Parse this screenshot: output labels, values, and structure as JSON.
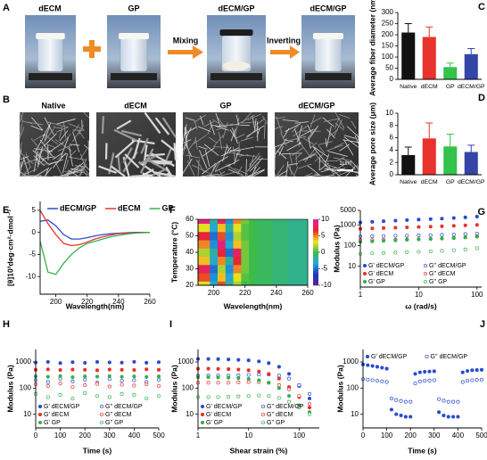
{
  "panel_a": {
    "letter": "A",
    "labels": [
      "dECM",
      "GP",
      "dECM/GP",
      "dECM/GP"
    ],
    "arrows": [
      "Mixing",
      "Inverting"
    ]
  },
  "panel_b": {
    "letter": "B",
    "labels": [
      "Native",
      "dECM",
      "GP",
      "dECM/GP"
    ],
    "scale_bar": "1μm"
  },
  "chart_data": [
    {
      "type": "bar",
      "letter": "C",
      "ylabel": "Average fiber diameter (nm)",
      "categories": [
        "Native",
        "dECM",
        "GP",
        "dECM/GP"
      ],
      "values": [
        210,
        190,
        55,
        113
      ],
      "errors": [
        40,
        45,
        18,
        25
      ],
      "colors": [
        "#111111",
        "#e8322c",
        "#33c24a",
        "#3445a8"
      ],
      "ylim": [
        0,
        300
      ],
      "yticks": [
        0,
        50,
        100,
        150,
        200,
        250,
        300
      ]
    },
    {
      "type": "bar",
      "letter": "D",
      "ylabel": "Average pore size (μm)",
      "categories": [
        "Native",
        "dECM",
        "GP",
        "dECM/GP"
      ],
      "values": [
        3.2,
        5.9,
        4.6,
        3.7
      ],
      "errors": [
        1.3,
        2.5,
        2.0,
        1.1
      ],
      "colors": [
        "#111111",
        "#e8322c",
        "#33c24a",
        "#3445a8"
      ],
      "ylim": [
        0,
        10
      ],
      "yticks": [
        0,
        2,
        4,
        6,
        8,
        10
      ]
    },
    {
      "type": "line",
      "letter": "E",
      "ylabel": "[θ]10³deg·cm²·dmol⁻¹",
      "xlabel": "Wavelength(nm)",
      "x": [
        190,
        195,
        200,
        205,
        210,
        215,
        220,
        225,
        230,
        235,
        240,
        245,
        250,
        255,
        260
      ],
      "series": [
        {
          "name": "dECM/GP",
          "color": "#2b4bd0",
          "values": [
            2.5,
            2.8,
            1.5,
            -0.5,
            -1.5,
            -1.5,
            -1.2,
            -0.8,
            -0.5,
            -0.3,
            -0.2,
            -0.1,
            0,
            0,
            0
          ]
        },
        {
          "name": "dECM",
          "color": "#e8322c",
          "values": [
            5,
            2,
            -0.5,
            -2.5,
            -3,
            -2.8,
            -2.2,
            -1.5,
            -1,
            -0.6,
            -0.3,
            -0.2,
            -0.1,
            0,
            0
          ]
        },
        {
          "name": "GP",
          "color": "#33b24a",
          "values": [
            -2,
            -9,
            -9.5,
            -7,
            -5,
            -3.5,
            -2.5,
            -2,
            -1.5,
            -1,
            -0.7,
            -0.4,
            -0.2,
            -0.1,
            0
          ]
        }
      ],
      "xlim": [
        190,
        260
      ],
      "xticks": [
        200,
        220,
        240,
        260
      ],
      "ylim": [
        -14,
        7
      ],
      "yticks": [
        -10,
        -5,
        0,
        5
      ]
    },
    {
      "type": "heatmap",
      "letter": "F",
      "ylabel": "Temperature (°C)",
      "xlabel": "Wavelength(nm)",
      "x": [
        195,
        200,
        205,
        210,
        215,
        220,
        225,
        230,
        235,
        240,
        245,
        250,
        255,
        260
      ],
      "y": [
        20,
        25,
        30,
        35,
        40,
        45,
        50,
        55,
        60
      ],
      "z": [
        [
          3,
          -3,
          6,
          -2,
          2,
          0,
          0,
          -0.5,
          -0.5,
          -1,
          -1,
          -1.5,
          -1.5,
          -1.5
        ],
        [
          6,
          -4,
          4,
          -3,
          3,
          0.5,
          0,
          -0.5,
          -0.5,
          -1,
          -1,
          -1.5,
          -1.5,
          -1.5
        ],
        [
          8,
          -5,
          2,
          -4,
          5,
          1,
          0,
          -0.5,
          -0.5,
          -1,
          -1,
          -1.5,
          -1.5,
          -1.5
        ],
        [
          4,
          -3,
          5,
          -2,
          7,
          1,
          0,
          -0.5,
          -0.5,
          -1,
          -1,
          -1.5,
          -1.5,
          -1.5
        ],
        [
          2,
          -2,
          7,
          -5,
          8,
          1,
          0,
          -0.5,
          -0.5,
          -1,
          -1,
          -1.5,
          -1.5,
          -1.5
        ],
        [
          5,
          -4,
          9,
          -3,
          4,
          1,
          0,
          -0.5,
          -0.5,
          -1,
          -1,
          -1.5,
          -1.5,
          -1.5
        ],
        [
          7,
          -5,
          6,
          -4,
          2,
          0.5,
          0,
          -0.5,
          -0.5,
          -1,
          -1,
          -1.5,
          -1.5,
          -1.5
        ],
        [
          3,
          -3,
          4,
          -2,
          3,
          0.5,
          0,
          -0.5,
          -0.5,
          -1,
          -1,
          -1.5,
          -1.5,
          -1.5
        ],
        [
          9,
          -2,
          8,
          -4,
          5,
          1,
          0,
          -0.5,
          -0.5,
          -1,
          -1,
          -1.5,
          -1.5,
          -1.5
        ]
      ],
      "xlim": [
        190,
        260
      ],
      "xticks": [
        200,
        220,
        240,
        260
      ],
      "ylim": [
        20,
        60
      ],
      "yticks": [
        20,
        30,
        40,
        50,
        60
      ],
      "colorbar": {
        "zlim": [
          -10,
          10
        ],
        "ticks": [
          10,
          5,
          0,
          -5,
          -10
        ]
      },
      "colormap": [
        "#5a1e8c",
        "#2035c0",
        "#22a6de",
        "#3dbb4a",
        "#f4e51e",
        "#e8262b",
        "#e020a0"
      ]
    },
    {
      "type": "scatter",
      "letter": "G",
      "ylabel": "Modulus (Pa)",
      "xlabel": "ω (rad/s)",
      "xlog": true,
      "ylog": true,
      "legend": "lower",
      "x": [
        1,
        1.6,
        2.5,
        4,
        6.3,
        10,
        16,
        25,
        40,
        63,
        100
      ],
      "series": [
        {
          "name": "G' dECM/GP",
          "color": "#2b4bd0",
          "filled": true,
          "values": [
            1300,
            1400,
            1500,
            1600,
            1700,
            1800,
            1900,
            2000,
            2150,
            2300,
            2500
          ]
        },
        {
          "name": "G'' dECM/GP",
          "color": "#2b4bd0",
          "filled": false,
          "values": [
            270,
            280,
            290,
            300,
            300,
            310,
            320,
            330,
            340,
            360,
            380
          ]
        },
        {
          "name": "G' dECM",
          "color": "#e8322c",
          "filled": true,
          "values": [
            650,
            680,
            700,
            730,
            760,
            790,
            820,
            860,
            900,
            950,
            1000
          ]
        },
        {
          "name": "G'' dECM",
          "color": "#e8322c",
          "filled": false,
          "values": [
            180,
            185,
            190,
            195,
            200,
            205,
            210,
            220,
            230,
            250,
            280
          ]
        },
        {
          "name": "G' GP",
          "color": "#33b24a",
          "filled": true,
          "values": [
            150,
            160,
            170,
            180,
            190,
            200,
            210,
            220,
            235,
            250,
            270
          ]
        },
        {
          "name": "G'' GP",
          "color": "#33b24a",
          "filled": false,
          "values": [
            40,
            42,
            44,
            46,
            48,
            50,
            53,
            56,
            60,
            65,
            75
          ]
        }
      ],
      "xlim": [
        1,
        120
      ],
      "xticks": [
        1,
        10,
        100
      ],
      "ylim": [
        1,
        5000
      ],
      "yticks": [
        10,
        100,
        1000,
        5000
      ]
    },
    {
      "type": "scatter",
      "letter": "H",
      "ylabel": "Modulus (Pa)",
      "xlabel": "Time (s)",
      "xlog": false,
      "ylog": true,
      "legend": "lower",
      "x": [
        0,
        50,
        100,
        150,
        200,
        250,
        300,
        350,
        400,
        450,
        500
      ],
      "series": [
        {
          "name": "G' dECM/GP",
          "color": "#2b4bd0",
          "filled": true,
          "values": [
            950,
            1000,
            900,
            980,
            920,
            1000,
            960,
            940,
            1010,
            930,
            980
          ]
        },
        {
          "name": "G'' dECM/GP",
          "color": "#2b4bd0",
          "filled": false,
          "values": [
            200,
            170,
            230,
            180,
            210,
            160,
            220,
            190,
            200,
            170,
            210
          ]
        },
        {
          "name": "G' dECM",
          "color": "#e8322c",
          "filled": true,
          "values": [
            500,
            520,
            490,
            510,
            500,
            480,
            510,
            500,
            490,
            520,
            500
          ]
        },
        {
          "name": "G'' dECM",
          "color": "#e8322c",
          "filled": false,
          "values": [
            140,
            120,
            150,
            110,
            130,
            145,
            115,
            135,
            125,
            140,
            120
          ]
        },
        {
          "name": "G' GP",
          "color": "#33b24a",
          "filled": true,
          "values": [
            280,
            270,
            290,
            260,
            280,
            275,
            285,
            270,
            280,
            265,
            280
          ]
        },
        {
          "name": "G'' GP",
          "color": "#33b24a",
          "filled": false,
          "values": [
            60,
            45,
            55,
            40,
            65,
            50,
            45,
            60,
            55,
            40,
            50
          ]
        }
      ],
      "xlim": [
        0,
        500
      ],
      "xticks": [
        0,
        100,
        200,
        300,
        400,
        500
      ],
      "ylim": [
        3,
        3000
      ],
      "yticks": [
        10,
        100,
        1000
      ]
    },
    {
      "type": "scatter",
      "letter": "I",
      "ylabel": "Modulus (Pa)",
      "xlabel": "Shear strain (%)",
      "xlog": true,
      "ylog": true,
      "legend": "lower",
      "x": [
        1,
        1.6,
        2.5,
        4,
        6.3,
        10,
        16,
        25,
        40,
        63,
        100,
        160
      ],
      "series": [
        {
          "name": "G' dECM/GP",
          "color": "#2b4bd0",
          "filled": true,
          "values": [
            1300,
            1300,
            1280,
            1250,
            1200,
            1150,
            1050,
            900,
            650,
            350,
            120,
            40
          ]
        },
        {
          "name": "G'' dECM/GP",
          "color": "#2b4bd0",
          "filled": false,
          "values": [
            300,
            300,
            300,
            300,
            310,
            320,
            330,
            330,
            300,
            230,
            130,
            60
          ]
        },
        {
          "name": "G' dECM",
          "color": "#e8322c",
          "filled": true,
          "values": [
            550,
            550,
            540,
            530,
            510,
            480,
            430,
            350,
            230,
            110,
            45,
            18
          ]
        },
        {
          "name": "G'' dECM",
          "color": "#e8322c",
          "filled": false,
          "values": [
            160,
            160,
            160,
            160,
            165,
            170,
            170,
            160,
            130,
            90,
            50,
            25
          ]
        },
        {
          "name": "G' GP",
          "color": "#33b24a",
          "filled": true,
          "values": [
            260,
            260,
            255,
            250,
            240,
            225,
            200,
            160,
            100,
            50,
            22,
            12
          ]
        },
        {
          "name": "G'' GP",
          "color": "#33b24a",
          "filled": false,
          "values": [
            45,
            45,
            45,
            46,
            48,
            50,
            52,
            50,
            42,
            30,
            18,
            10
          ]
        }
      ],
      "xlim": [
        1,
        250
      ],
      "xticks": [
        1,
        10,
        100
      ],
      "ylim": [
        3,
        3000
      ],
      "yticks": [
        10,
        100,
        1000
      ]
    },
    {
      "type": "scatter",
      "letter": "J",
      "ylabel": "Modulus (Pa)",
      "xlabel": "Time (s)",
      "xlog": false,
      "ylog": true,
      "legend": "upper",
      "x": [
        0,
        20,
        40,
        60,
        80,
        100,
        120,
        140,
        160,
        180,
        200,
        220,
        240,
        260,
        280,
        300,
        320,
        340,
        360,
        380,
        400,
        420,
        440,
        460,
        480,
        500
      ],
      "series": [
        {
          "name": "G' dECM/GP",
          "color": "#2b4bd0",
          "filled": true,
          "values": [
            800,
            750,
            700,
            650,
            600,
            550,
            15,
            10,
            9,
            8,
            8,
            350,
            400,
            420,
            430,
            440,
            12,
            9,
            8,
            8,
            8,
            400,
            450,
            480,
            490,
            500
          ]
        },
        {
          "name": "G'' dECM/GP",
          "color": "#2b4bd0",
          "filled": false,
          "values": [
            220,
            210,
            200,
            190,
            180,
            170,
            40,
            35,
            32,
            30,
            30,
            150,
            180,
            190,
            195,
            200,
            38,
            33,
            30,
            30,
            30,
            170,
            190,
            200,
            205,
            210
          ]
        }
      ],
      "xlim": [
        0,
        500
      ],
      "xticks": [
        0,
        100,
        200,
        300,
        400,
        500
      ],
      "ylim": [
        3,
        3000
      ],
      "yticks": [
        10,
        100,
        1000
      ]
    }
  ]
}
